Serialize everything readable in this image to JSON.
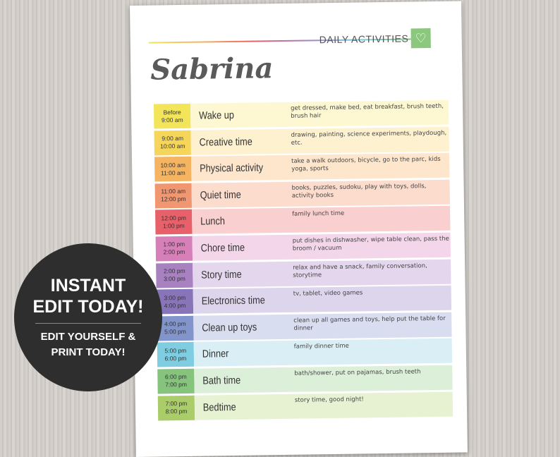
{
  "header": {
    "title": "DAILY ACTIVITIES",
    "icon": "heart-icon",
    "accent": "#8cc77e",
    "name": "Sabrina"
  },
  "rows": [
    {
      "from": "Before",
      "to": "9:00 am",
      "activity": "Wake up",
      "desc": "get dressed, make bed, eat breakfast, brush teeth, brush hair",
      "color": "#f2e55a",
      "bg": "#fdf8d2"
    },
    {
      "from": "9:00 am",
      "to": "10:00 am",
      "activity": "Creative time",
      "desc": "drawing, painting, science experiments, playdough, etc.",
      "color": "#f5d65a",
      "bg": "#fdf1cf"
    },
    {
      "from": "10:00 am",
      "to": "11:00 am",
      "activity": "Physical activity",
      "desc": "take a walk outdoors, bicycle, go to the parc, kids yoga, sports",
      "color": "#f5b461",
      "bg": "#fde6cc"
    },
    {
      "from": "11:00 am",
      "to": "12:00 pm",
      "activity": "Quiet time",
      "desc": "books, puzzles, sudoku, play with toys, dolls, activity books",
      "color": "#f09670",
      "bg": "#fcdccd"
    },
    {
      "from": "12:00 pm",
      "to": "1:00 pm",
      "activity": "Lunch",
      "desc": "family lunch time",
      "color": "#e8606a",
      "bg": "#f9cfcf"
    },
    {
      "from": "1:00 pm",
      "to": "2:00 pm",
      "activity": "Chore time",
      "desc": "put dishes in dishwasher, wipe table clean, pass the broom / vacuum",
      "color": "#d77fb8",
      "bg": "#f3d6ea"
    },
    {
      "from": "2:00 pm",
      "to": "3:00 pm",
      "activity": "Story time",
      "desc": "relax and have a snack, family conversation, storytime",
      "color": "#a781c0",
      "bg": "#e4d6ec"
    },
    {
      "from": "3:00 pm",
      "to": "4:00 pm",
      "activity": "Electronics time",
      "desc": "tv, tablet, video games",
      "color": "#8874b8",
      "bg": "#dcd5ec"
    },
    {
      "from": "4:00 pm",
      "to": "5:00 pm",
      "activity": "Clean up toys",
      "desc": "clean up all games and toys, help put the table for dinner",
      "color": "#8294cc",
      "bg": "#d9ddf0"
    },
    {
      "from": "5:00 pm",
      "to": "6:00 pm",
      "activity": "Dinner",
      "desc": "family dinner time",
      "color": "#7fcde0",
      "bg": "#d9eff5"
    },
    {
      "from": "6:00 pm",
      "to": "7:00 pm",
      "activity": "Bath time",
      "desc": "bath/shower, put on pajamas, brush teeth",
      "color": "#86c47e",
      "bg": "#dcefd8"
    },
    {
      "from": "7:00 pm",
      "to": "8:00 pm",
      "activity": "Bedtime",
      "desc": "story time, good night!",
      "color": "#aacd6a",
      "bg": "#e7f2d3"
    }
  ],
  "badge": {
    "line1": "INSTANT",
    "line2": "EDIT TODAY!",
    "line3": "EDIT YOURSELF &",
    "line4": "PRINT TODAY!"
  }
}
